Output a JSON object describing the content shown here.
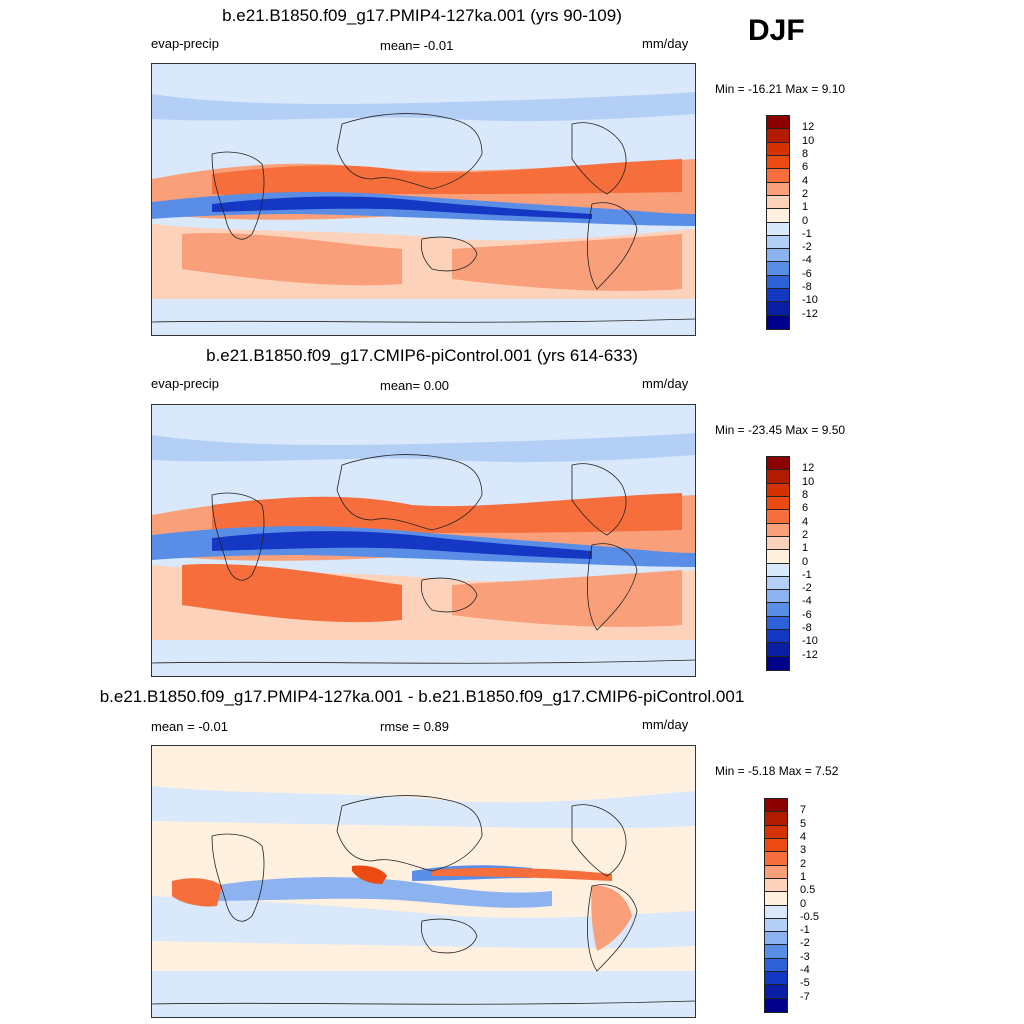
{
  "season": "DJF",
  "panels": [
    {
      "title": "b.e21.B1850.f09_g17.PMIP4-127ka.001 (yrs 90-109)",
      "left_label": "evap-precip",
      "center_label": "mean=  -0.01",
      "units": "mm/day",
      "minmax": "Min = -16.21 Max =    9.10",
      "colorbar_labels": [
        "12",
        "10",
        "8",
        "6",
        "4",
        "2",
        "1",
        "0",
        "-1",
        "-2",
        "-4",
        "-6",
        "-8",
        "-10",
        "-12"
      ],
      "colorbar_colors": [
        "#8b0000",
        "#b31b00",
        "#d43200",
        "#eb4a12",
        "#f66e3c",
        "#f9a07a",
        "#fcd2bb",
        "#fff0e0",
        "#d9e8fb",
        "#b4cff6",
        "#8cb2f0",
        "#5a8ee6",
        "#2f62d9",
        "#1438c4",
        "#0a1ea3",
        "#00008b"
      ]
    },
    {
      "title": "b.e21.B1850.f09_g17.CMIP6-piControl.001 (yrs 614-633)",
      "left_label": "evap-precip",
      "center_label": "mean=   0.00",
      "units": "mm/day",
      "minmax": "Min = -23.45 Max =    9.50",
      "colorbar_labels": [
        "12",
        "10",
        "8",
        "6",
        "4",
        "2",
        "1",
        "0",
        "-1",
        "-2",
        "-4",
        "-6",
        "-8",
        "-10",
        "-12"
      ],
      "colorbar_colors": [
        "#8b0000",
        "#b31b00",
        "#d43200",
        "#eb4a12",
        "#f66e3c",
        "#f9a07a",
        "#fcd2bb",
        "#fff0e0",
        "#d9e8fb",
        "#b4cff6",
        "#8cb2f0",
        "#5a8ee6",
        "#2f62d9",
        "#1438c4",
        "#0a1ea3",
        "#00008b"
      ]
    },
    {
      "title": "b.e21.B1850.f09_g17.PMIP4-127ka.001 - b.e21.B1850.f09_g17.CMIP6-piControl.001",
      "left_label": "mean =  -0.01",
      "center_label": "rmse =    0.89",
      "units": "mm/day",
      "minmax": "Min =  -5.18 Max =    7.52",
      "colorbar_labels": [
        "7",
        "5",
        "4",
        "3",
        "2",
        "1",
        "0.5",
        "0",
        "-0.5",
        "-1",
        "-2",
        "-3",
        "-4",
        "-5",
        "-7"
      ],
      "colorbar_colors": [
        "#8b0000",
        "#b31b00",
        "#d43200",
        "#eb4a12",
        "#f66e3c",
        "#f9a07a",
        "#fcd2bb",
        "#fff0e0",
        "#d9e8fb",
        "#b4cff6",
        "#8cb2f0",
        "#5a8ee6",
        "#2f62d9",
        "#1438c4",
        "#0a1ea3",
        "#00008b"
      ]
    }
  ]
}
